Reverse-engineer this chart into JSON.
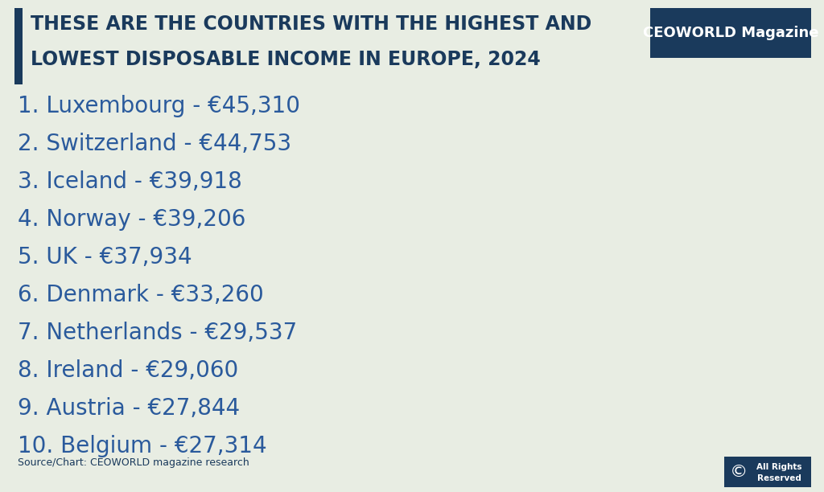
{
  "title_line1": "THESE ARE THE COUNTRIES WITH THE HIGHEST AND",
  "title_line2": "LOWEST DISPOSABLE INCOME IN EUROPE, 2024",
  "background_color": "#e8ede3",
  "title_color": "#1a3a5c",
  "text_color": "#2a5a9c",
  "bar_color": "#1a3a5c",
  "logo_bg_color": "#1a3a5c",
  "logo_text_color": "#ffffff",
  "logo_text": "CEOWORLD Magazine",
  "source_text": "Source/Chart: CEOWORLD magazine research",
  "items": [
    "1. Luxembourg - €45,310",
    "2. Switzerland - €44,753",
    "3. Iceland - €39,918",
    "4. Norway - €39,206",
    "5. UK - €37,934",
    "6. Denmark - €33,260",
    "7. Netherlands - €29,537",
    "8. Ireland - €29,060",
    "9. Austria - €27,844",
    "10. Belgium - €27,314"
  ],
  "title_fontsize": 17,
  "item_fontsize": 20,
  "source_fontsize": 9,
  "logo_fontsize": 13
}
